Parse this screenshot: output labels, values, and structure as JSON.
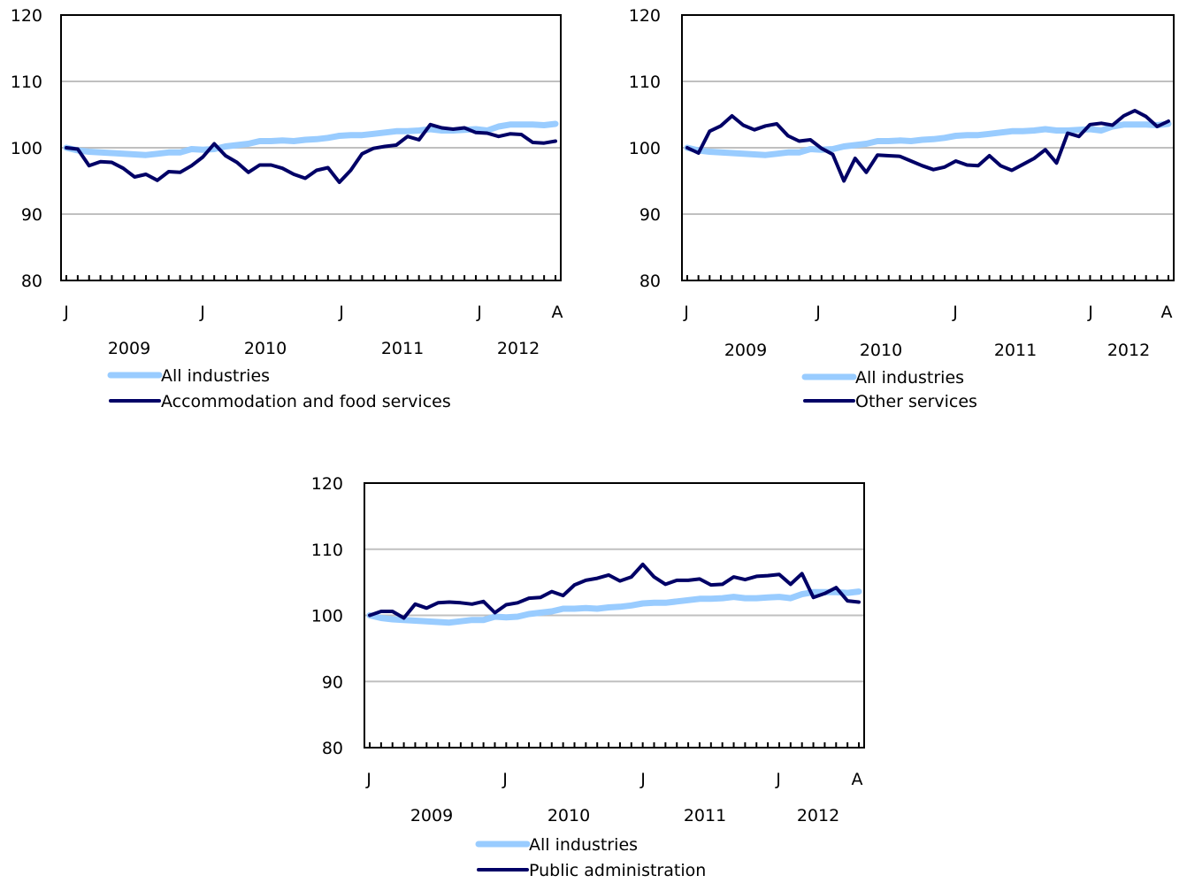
{
  "chart_data": [
    {
      "type": "line",
      "ylim": [
        80,
        120
      ],
      "yticks": [
        "80",
        "90",
        "100",
        "110",
        "120"
      ],
      "month_labels": [
        "J",
        "J",
        "J",
        "J",
        "A"
      ],
      "year_labels": [
        "2009",
        "2010",
        "2011",
        "2012"
      ],
      "grid": true,
      "legend": "bottom",
      "series": [
        {
          "name": "All industries",
          "color": "#99ccff",
          "values": [
            100.0,
            99.6,
            99.4,
            99.3,
            99.2,
            99.1,
            99.0,
            98.9,
            99.1,
            99.3,
            99.3,
            99.8,
            99.7,
            99.8,
            100.2,
            100.4,
            100.6,
            101.0,
            101.0,
            101.1,
            101.0,
            101.2,
            101.3,
            101.5,
            101.8,
            101.9,
            101.9,
            102.1,
            102.3,
            102.5,
            102.5,
            102.6,
            102.8,
            102.6,
            102.6,
            102.7,
            102.8,
            102.6,
            103.2,
            103.5,
            103.5,
            103.5,
            103.4,
            103.6
          ]
        },
        {
          "name": "Accommodation and food services",
          "color": "#000066",
          "values": [
            100.0,
            99.8,
            97.3,
            97.9,
            97.8,
            96.9,
            95.6,
            96.0,
            95.1,
            96.4,
            96.3,
            97.3,
            98.6,
            100.6,
            98.8,
            97.8,
            96.3,
            97.4,
            97.4,
            96.9,
            96.0,
            95.4,
            96.6,
            97.0,
            94.8,
            96.6,
            99.1,
            99.9,
            100.2,
            100.4,
            101.7,
            101.2,
            103.5,
            103.0,
            102.8,
            103.0,
            102.3,
            102.2,
            101.7,
            102.1,
            102.0,
            100.8,
            100.7,
            101.0
          ]
        }
      ]
    },
    {
      "type": "line",
      "ylim": [
        80,
        120
      ],
      "yticks": [
        "80",
        "90",
        "100",
        "110",
        "120"
      ],
      "month_labels": [
        "J",
        "J",
        "J",
        "J",
        "A"
      ],
      "year_labels": [
        "2009",
        "2010",
        "2011",
        "2012"
      ],
      "grid": true,
      "legend": "bottom",
      "series": [
        {
          "name": "All industries",
          "color": "#99ccff",
          "values": [
            100.0,
            99.6,
            99.4,
            99.3,
            99.2,
            99.1,
            99.0,
            98.9,
            99.1,
            99.3,
            99.3,
            99.8,
            99.7,
            99.8,
            100.2,
            100.4,
            100.6,
            101.0,
            101.0,
            101.1,
            101.0,
            101.2,
            101.3,
            101.5,
            101.8,
            101.9,
            101.9,
            102.1,
            102.3,
            102.5,
            102.5,
            102.6,
            102.8,
            102.6,
            102.6,
            102.7,
            102.8,
            102.6,
            103.2,
            103.5,
            103.5,
            103.5,
            103.4,
            103.6
          ]
        },
        {
          "name": "Other services",
          "color": "#000066",
          "values": [
            100.0,
            99.2,
            102.5,
            103.3,
            104.8,
            103.4,
            102.7,
            103.3,
            103.6,
            101.8,
            101.0,
            101.2,
            99.9,
            99.0,
            95.0,
            98.4,
            96.3,
            98.9,
            98.8,
            98.7,
            98.0,
            97.3,
            96.7,
            97.1,
            98.0,
            97.4,
            97.3,
            98.8,
            97.3,
            96.6,
            97.5,
            98.4,
            99.7,
            97.7,
            102.2,
            101.7,
            103.5,
            103.7,
            103.4,
            104.8,
            105.6,
            104.7,
            103.2,
            104.0
          ]
        }
      ]
    },
    {
      "type": "line",
      "ylim": [
        80,
        120
      ],
      "yticks": [
        "80",
        "90",
        "100",
        "110",
        "120"
      ],
      "month_labels": [
        "J",
        "J",
        "J",
        "J",
        "A"
      ],
      "year_labels": [
        "2009",
        "2010",
        "2011",
        "2012"
      ],
      "grid": true,
      "legend": "bottom",
      "series": [
        {
          "name": "All industries",
          "color": "#99ccff",
          "values": [
            100.0,
            99.6,
            99.4,
            99.3,
            99.2,
            99.1,
            99.0,
            98.9,
            99.1,
            99.3,
            99.3,
            99.8,
            99.7,
            99.8,
            100.2,
            100.4,
            100.6,
            101.0,
            101.0,
            101.1,
            101.0,
            101.2,
            101.3,
            101.5,
            101.8,
            101.9,
            101.9,
            102.1,
            102.3,
            102.5,
            102.5,
            102.6,
            102.8,
            102.6,
            102.6,
            102.7,
            102.8,
            102.6,
            103.2,
            103.5,
            103.5,
            103.5,
            103.4,
            103.6
          ]
        },
        {
          "name": "Public administration",
          "color": "#000066",
          "values": [
            100.0,
            100.6,
            100.6,
            99.6,
            101.7,
            101.1,
            101.9,
            102.0,
            101.9,
            101.7,
            102.1,
            100.4,
            101.6,
            101.9,
            102.6,
            102.7,
            103.6,
            103.0,
            104.6,
            105.3,
            105.6,
            106.1,
            105.2,
            105.8,
            107.7,
            105.8,
            104.7,
            105.3,
            105.3,
            105.5,
            104.6,
            104.7,
            105.8,
            105.4,
            105.9,
            106.0,
            106.2,
            104.7,
            106.3,
            102.7,
            103.3,
            104.2,
            102.2,
            102.0
          ]
        }
      ]
    }
  ]
}
